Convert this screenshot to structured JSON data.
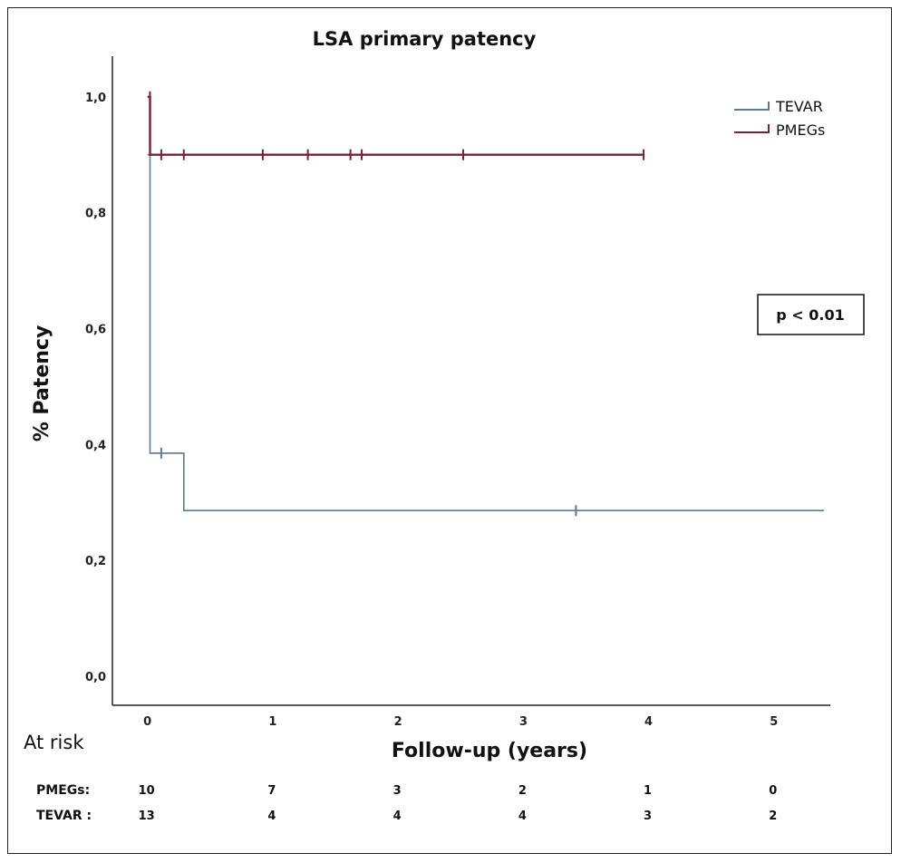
{
  "chart_data": {
    "type": "line",
    "subtype": "kaplan-meier-step",
    "title": "LSA primary patency",
    "xlabel": "Follow-up (years)",
    "ylabel": "% Patency",
    "xlim": [
      -0.28,
      5.45
    ],
    "ylim": [
      -0.05,
      1.07
    ],
    "x_ticks": [
      0,
      1,
      2,
      3,
      4,
      5
    ],
    "x_tick_labels": [
      "0",
      "1",
      "2",
      "3",
      "4",
      "5"
    ],
    "y_ticks": [
      0.0,
      0.2,
      0.4,
      0.6,
      0.8,
      1.0
    ],
    "y_tick_labels": [
      "0,0",
      "0,2",
      "0,4",
      "0,6",
      "0,8",
      "1,0"
    ],
    "grid": false,
    "legend_position": "top-right",
    "series": [
      {
        "name": "TEVAR",
        "color": "#5b7c93",
        "steps": [
          [
            0,
            0.9
          ],
          [
            0.02,
            0.9
          ],
          [
            0.02,
            0.385
          ],
          [
            0.29,
            0.385
          ],
          [
            0.29,
            0.286
          ],
          [
            5.4,
            0.286
          ]
        ],
        "censored": [
          [
            0.11,
            0.385
          ],
          [
            3.42,
            0.286
          ]
        ]
      },
      {
        "name": "PMEGs",
        "color": "#7a2233",
        "steps": [
          [
            0,
            1.0
          ],
          [
            0.02,
            1.0
          ],
          [
            0.02,
            0.9
          ],
          [
            3.96,
            0.9
          ]
        ],
        "censored": [
          [
            0.02,
            1.0
          ],
          [
            0.11,
            0.9
          ],
          [
            0.29,
            0.9
          ],
          [
            0.92,
            0.9
          ],
          [
            1.28,
            0.9
          ],
          [
            1.62,
            0.9
          ],
          [
            1.71,
            0.9
          ],
          [
            2.52,
            0.9
          ],
          [
            3.96,
            0.9
          ]
        ]
      }
    ],
    "annotation": "p < 0.01",
    "at_risk": {
      "heading": "At risk",
      "rows": [
        {
          "label": "PMEGs:",
          "values": [
            "10",
            "7",
            "3",
            "2",
            "1",
            "0"
          ]
        },
        {
          "label": "TEVAR :",
          "values": [
            "13",
            "4",
            "4",
            "4",
            "3",
            "2"
          ]
        }
      ]
    }
  }
}
